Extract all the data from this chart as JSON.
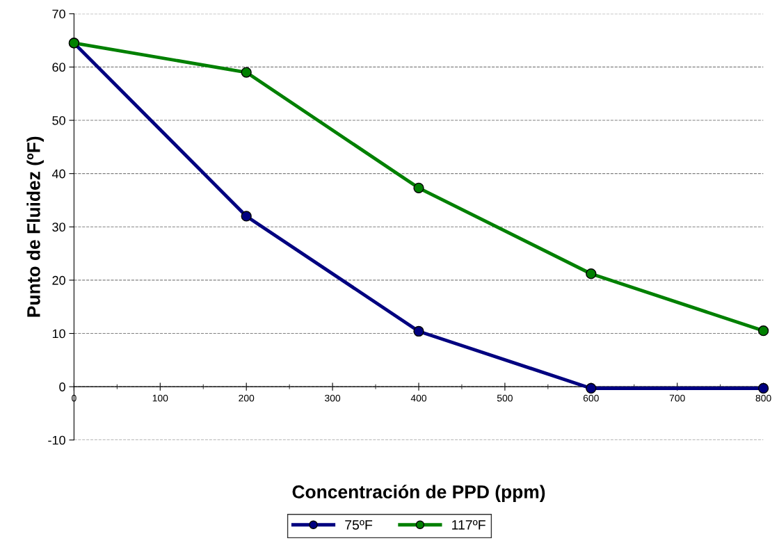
{
  "chart_data": {
    "type": "line",
    "xlabel": "Concentración de PPD (ppm)",
    "ylabel": "Punto de Fluidez (ºF)",
    "x": [
      0,
      200,
      400,
      600,
      800
    ],
    "series": [
      {
        "name": "75ºF",
        "color": "#000080",
        "values": [
          64.5,
          32,
          10.4,
          -0.3,
          -0.3
        ]
      },
      {
        "name": "117ºF",
        "color": "#008000",
        "values": [
          64.5,
          59,
          37.3,
          21.2,
          10.5
        ]
      }
    ],
    "xlim": [
      0,
      800
    ],
    "xticks": [
      0,
      100,
      200,
      300,
      400,
      500,
      600,
      700,
      800
    ],
    "ylim": [
      -10,
      70
    ],
    "yticks": [
      -10,
      0,
      10,
      20,
      30,
      40,
      50,
      60,
      70
    ],
    "grid": "y",
    "legend": "bottom",
    "marker": "circle",
    "line_style": "solid"
  }
}
